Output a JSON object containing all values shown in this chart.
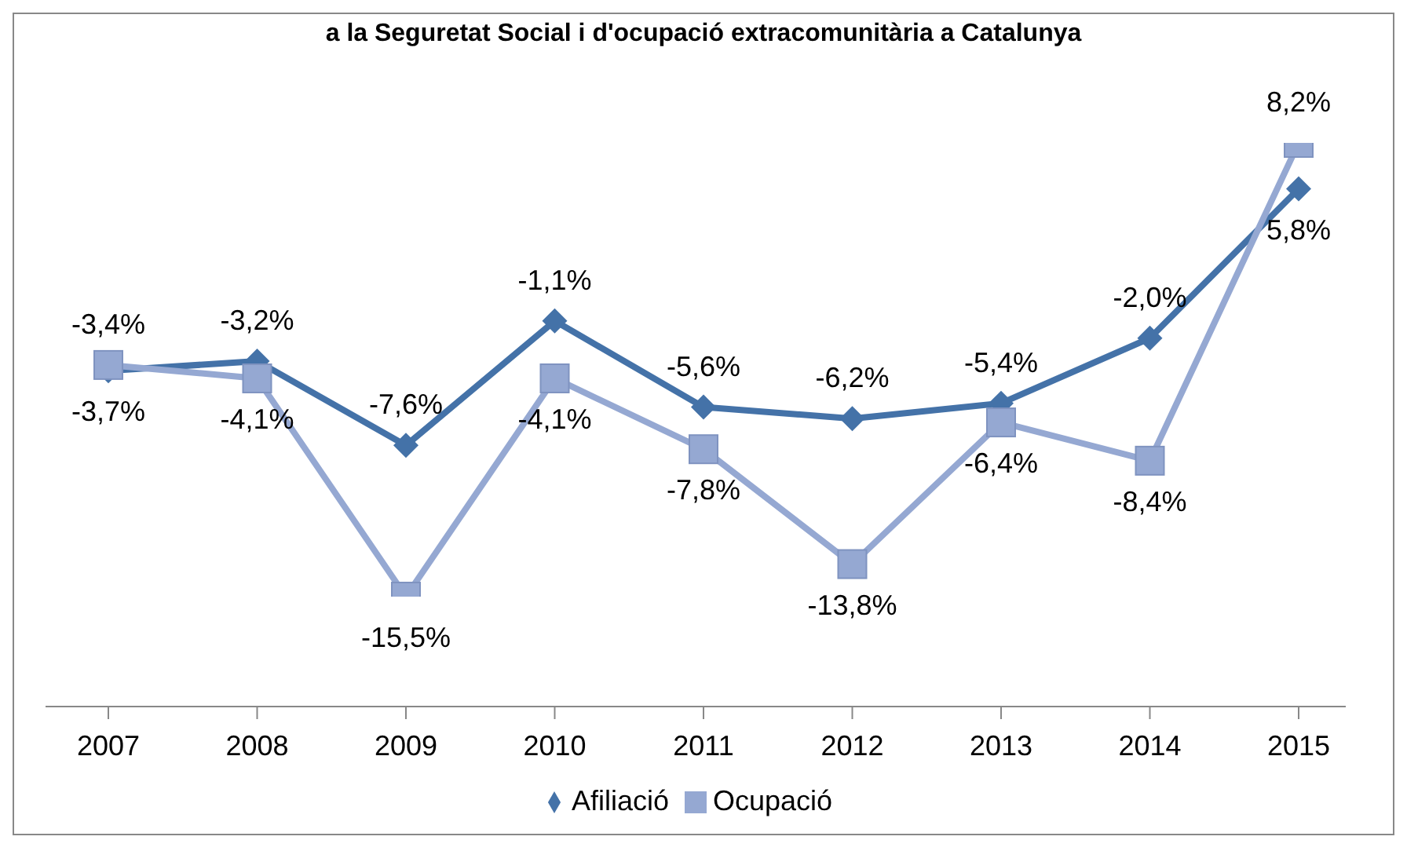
{
  "chart_data": {
    "type": "line",
    "title": "a la Seguretat Social i d'ocupació extracomunitària a Catalunya",
    "categories": [
      "2007",
      "2008",
      "2009",
      "2010",
      "2011",
      "2012",
      "2013",
      "2014",
      "2015"
    ],
    "series": [
      {
        "name": "Afiliació",
        "color": "#4472a8",
        "marker": "diamond",
        "values": [
          -3.7,
          -3.2,
          -7.6,
          -1.1,
          -5.6,
          -6.2,
          -5.4,
          -2.0,
          5.8
        ],
        "value_labels": [
          "-3,7%",
          "-3,2%",
          "-7,6%",
          "-1,1%",
          "-5,6%",
          "-6,2%",
          "-5,4%",
          "-2,0%",
          "5,8%"
        ]
      },
      {
        "name": "Ocupació",
        "color": "#95a8d2",
        "marker": "square",
        "values": [
          -3.4,
          -4.1,
          -15.5,
          -4.1,
          -7.8,
          -13.8,
          -6.4,
          -8.4,
          8.2
        ],
        "value_labels": [
          "-3,4%",
          "-4,1%",
          "-15,5%",
          "-4,1%",
          "-7,8%",
          "-13,8%",
          "-6,4%",
          "-8,4%",
          "8,2%"
        ]
      }
    ],
    "tick_labels": "x",
    "grid": false,
    "legend": "bottom",
    "line_style": "solid"
  }
}
